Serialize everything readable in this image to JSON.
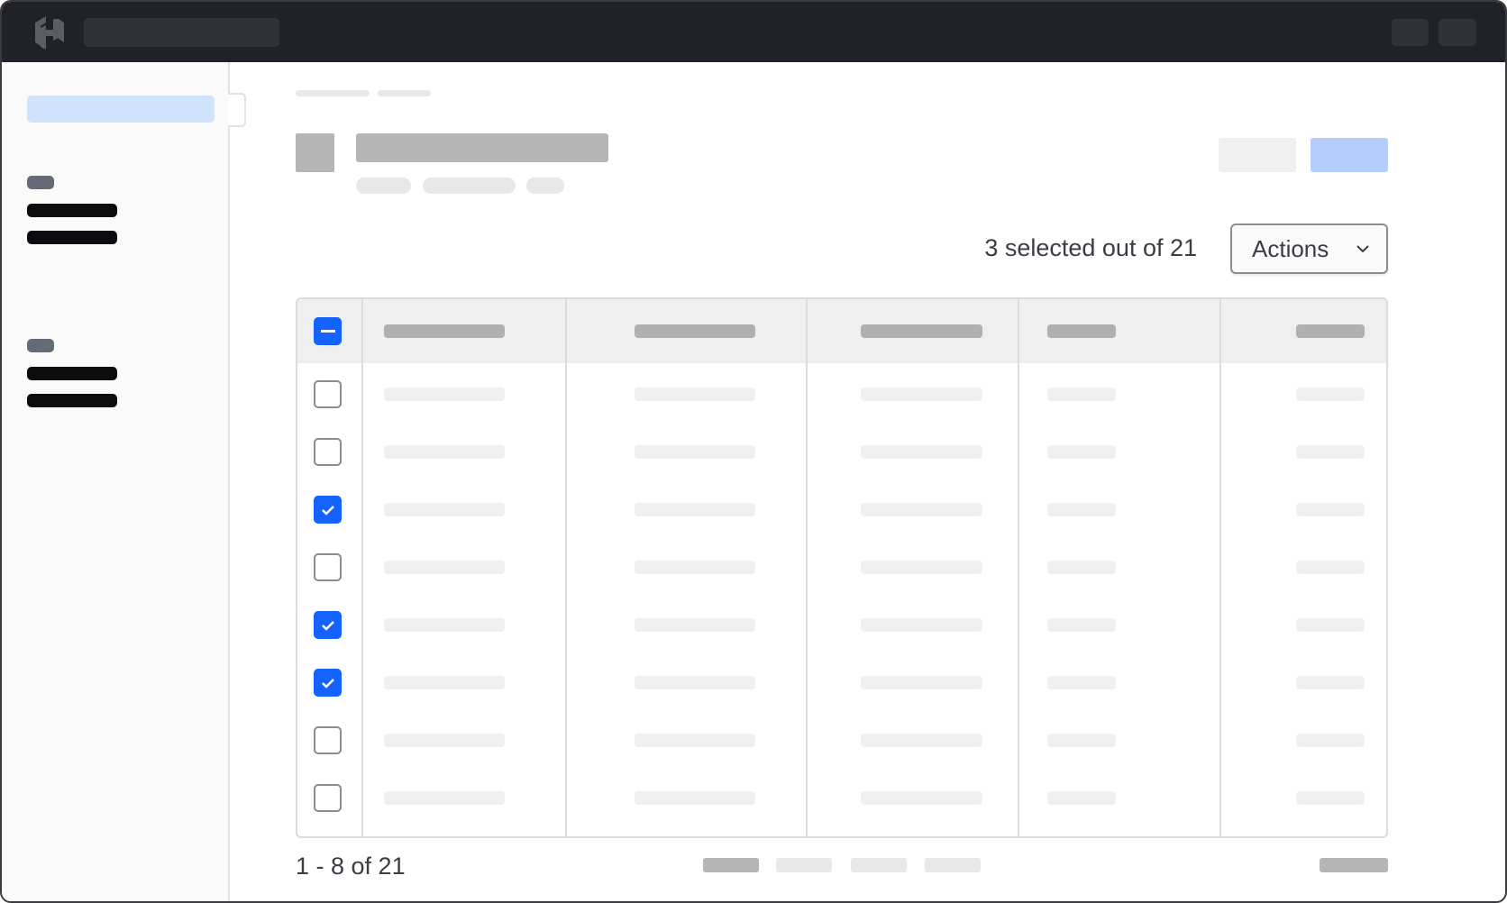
{
  "header": {
    "logo": "hashicorp-logo"
  },
  "toolbar": {
    "selection_status": "3 selected out of 21",
    "actions_label": "Actions"
  },
  "table": {
    "header_checkbox_state": "indeterminate",
    "rows": [
      {
        "checked": false
      },
      {
        "checked": false
      },
      {
        "checked": true
      },
      {
        "checked": false
      },
      {
        "checked": true
      },
      {
        "checked": true
      },
      {
        "checked": false
      },
      {
        "checked": false
      }
    ]
  },
  "pagination": {
    "range": "1 - 8 of 21"
  },
  "colors": {
    "accent": "#1563ff",
    "topbar": "#212227",
    "primary_button_placeholder": "#b4cdfd",
    "sidebar_active": "#cfe3fd"
  }
}
